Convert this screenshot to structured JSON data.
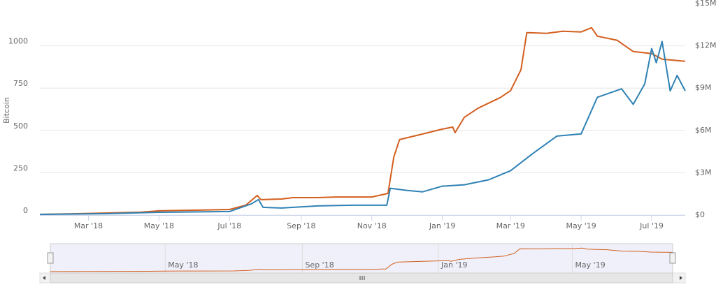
{
  "chart_data": {
    "type": "line",
    "y_label": "Bitcoin",
    "xlim": [
      "2018-01-18",
      "2019-07-30"
    ],
    "xticks": [
      {
        "value": "2018-03-01",
        "label": "Mar '18"
      },
      {
        "value": "2018-05-01",
        "label": "May '18"
      },
      {
        "value": "2018-07-01",
        "label": "Jul '18"
      },
      {
        "value": "2018-09-01",
        "label": "Sep '18"
      },
      {
        "value": "2018-11-01",
        "label": "Nov '18"
      },
      {
        "value": "2019-01-01",
        "label": "Jan '19"
      },
      {
        "value": "2019-03-01",
        "label": "Mar '19"
      },
      {
        "value": "2019-05-01",
        "label": "May '19"
      },
      {
        "value": "2019-07-01",
        "label": "Jul '19"
      }
    ],
    "ylim": [
      0,
      1250
    ],
    "yticks": [
      0,
      250,
      500,
      750,
      1000
    ],
    "y2lim": [
      0,
      15000000
    ],
    "y2ticks": [
      {
        "value": 0,
        "label": "$0"
      },
      {
        "value": 3000000,
        "label": "$3M"
      },
      {
        "value": 6000000,
        "label": "$6M"
      },
      {
        "value": 9000000,
        "label": "$9M"
      },
      {
        "value": 12000000,
        "label": "$12M"
      },
      {
        "value": 15000000,
        "label": "$15M"
      }
    ],
    "grid": true,
    "series": [
      {
        "color": "#d35f1f",
        "x": [
          "2018-01-18",
          "2018-02-15",
          "2018-03-15",
          "2018-04-15",
          "2018-05-01",
          "2018-06-01",
          "2018-07-01",
          "2018-07-15",
          "2018-07-25",
          "2018-07-28",
          "2018-08-15",
          "2018-08-25",
          "2018-09-15",
          "2018-10-01",
          "2018-11-01",
          "2018-11-15",
          "2018-11-20",
          "2018-11-25",
          "2018-12-15",
          "2019-01-01",
          "2019-01-10",
          "2019-01-12",
          "2019-01-20",
          "2019-02-01",
          "2019-02-20",
          "2019-03-01",
          "2019-03-10",
          "2019-03-15",
          "2019-04-01",
          "2019-04-15",
          "2019-05-01",
          "2019-05-10",
          "2019-05-15",
          "2019-06-01",
          "2019-06-15",
          "2019-07-01",
          "2019-07-10",
          "2019-07-30"
        ],
        "values": [
          4,
          8,
          12,
          17,
          25,
          29,
          33,
          58,
          116,
          91,
          95,
          103,
          103,
          107,
          107,
          128,
          343,
          446,
          479,
          508,
          520,
          487,
          578,
          632,
          694,
          735,
          859,
          1078,
          1074,
          1086,
          1082,
          1107,
          1057,
          1033,
          966,
          954,
          921,
          909
        ]
      },
      {
        "color": "#2f82b5",
        "axis": "y2",
        "x": [
          "2018-01-18",
          "2018-03-15",
          "2018-05-01",
          "2018-07-01",
          "2018-07-20",
          "2018-07-26",
          "2018-07-30",
          "2018-08-15",
          "2018-09-15",
          "2018-10-15",
          "2018-11-14",
          "2018-11-17",
          "2018-12-01",
          "2018-12-15",
          "2019-01-01",
          "2019-01-20",
          "2019-02-10",
          "2019-03-01",
          "2019-03-20",
          "2019-04-10",
          "2019-05-01",
          "2019-05-15",
          "2019-06-05",
          "2019-06-15",
          "2019-06-25",
          "2019-07-01",
          "2019-07-05",
          "2019-07-10",
          "2019-07-17",
          "2019-07-23",
          "2019-07-30"
        ],
        "values": [
          50000,
          100000,
          200000,
          250000,
          800000,
          1100000,
          550000,
          500000,
          650000,
          700000,
          700000,
          1900000,
          1750000,
          1650000,
          2050000,
          2150000,
          2500000,
          3150000,
          4350000,
          5600000,
          5750000,
          8350000,
          8950000,
          7850000,
          9300000,
          11800000,
          10800000,
          12300000,
          8800000,
          9900000,
          8800000
        ]
      }
    ],
    "navigator": {
      "xticks": [
        {
          "value": "2018-05-01",
          "label": "May '18"
        },
        {
          "value": "2018-09-01",
          "label": "Sep '18"
        },
        {
          "value": "2019-01-01",
          "label": "Jan '19"
        },
        {
          "value": "2019-05-01",
          "label": "May '19"
        }
      ]
    }
  }
}
